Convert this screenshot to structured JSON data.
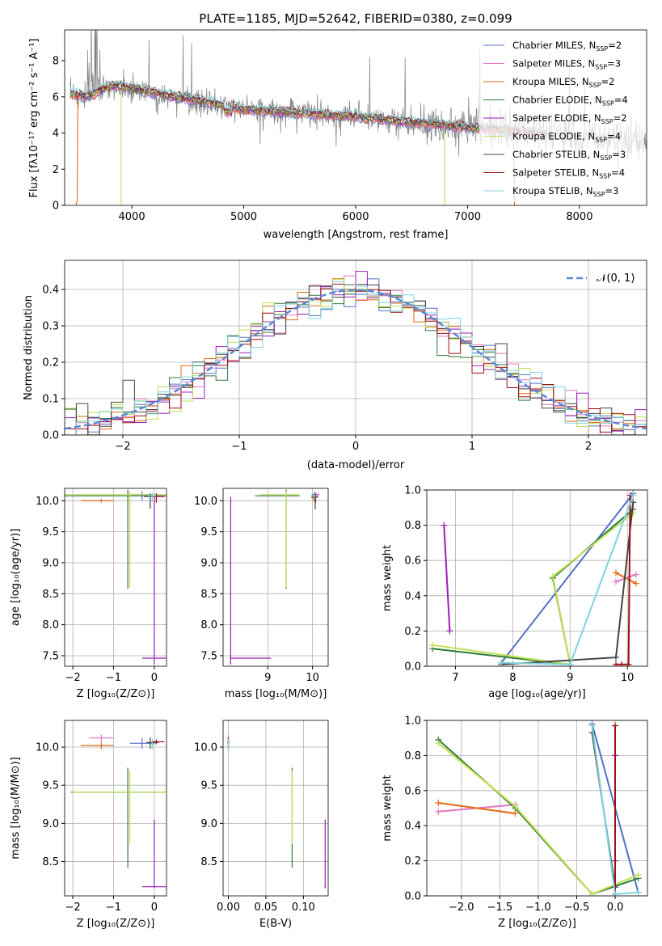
{
  "title": "PLATE=1185, MJD=52642, FIBERID=0380, z=0.099",
  "models": [
    {
      "name": "Chabrier MILES",
      "nssp": "2",
      "color": "#5470c6"
    },
    {
      "name": "Salpeter MILES",
      "nssp": "3",
      "color": "#e377c2"
    },
    {
      "name": "Kroupa MILES",
      "nssp": "2",
      "color": "#e66a14"
    },
    {
      "name": "Chabrier ELODIE",
      "nssp": "4",
      "color": "#2f7a3a"
    },
    {
      "name": "Salpeter ELODIE",
      "nssp": "2",
      "color": "#9a1fb5"
    },
    {
      "name": "Kroupa ELODIE",
      "nssp": "4",
      "color": "#c2e055"
    },
    {
      "name": "Chabrier STELIB",
      "nssp": "3",
      "color": "#444444"
    },
    {
      "name": "Salpeter STELIB",
      "nssp": "4",
      "color": "#a00d14"
    },
    {
      "name": "Kroupa STELIB",
      "nssp": "3",
      "color": "#7fd3dd"
    }
  ],
  "chart_data": [
    {
      "type": "line",
      "xlabel": "wavelength [Angstrom, rest frame]",
      "ylabel": "Flux [fλ10⁻¹⁷ erg cm⁻² s⁻¹ A⁻¹]",
      "xlim": [
        3400,
        8600
      ],
      "ylim": [
        0,
        9.7
      ],
      "xticks": [
        4000,
        5000,
        6000,
        7000,
        8000
      ],
      "yticks": [
        0,
        2,
        4,
        6,
        8
      ],
      "data_color": "#808080",
      "model_continuum": {
        "x": [
          3450,
          3600,
          3800,
          4000,
          4300,
          4600,
          5000,
          5500,
          6000,
          6500,
          7000,
          7500,
          7700
        ],
        "y": [
          6.2,
          6.0,
          6.6,
          6.5,
          6.1,
          5.8,
          5.3,
          5.1,
          4.9,
          4.6,
          4.3,
          4.1,
          3.9
        ]
      },
      "data_continuum": {
        "x": [
          3450,
          3600,
          3800,
          4000,
          4300,
          4600,
          5000,
          5500,
          6000,
          6500,
          7000,
          7500,
          8000,
          8500,
          8600
        ],
        "y": [
          6.2,
          6.0,
          6.5,
          6.4,
          6.0,
          5.7,
          5.3,
          5.1,
          4.9,
          4.6,
          4.3,
          4.1,
          3.8,
          3.6,
          3.5
        ]
      }
    },
    {
      "type": "bar",
      "xlabel": "(data-model)/error",
      "ylabel": "Normed distribution",
      "xlim": [
        -2.5,
        2.5
      ],
      "ylim": [
        0,
        0.48
      ],
      "xticks": [
        -2,
        -1,
        0,
        1,
        2
      ],
      "yticks": [
        0.0,
        0.1,
        0.2,
        0.3,
        0.4
      ],
      "bin_width": 0.1,
      "normal_pdf_label": "𝒩(0, 1)",
      "normal_pdf_color": "#5b8bd6"
    },
    {
      "type": "scatter",
      "xlabel": "Z [log₁₀(Z/Z⊙)]",
      "ylabel": "age  [log₁₀(age/yr)]",
      "xlim": [
        -2.2,
        0.3
      ],
      "ylim": [
        7.33,
        10.2
      ],
      "xticks": [
        -2,
        -1,
        0
      ],
      "yticks": [
        7.5,
        8.0,
        8.5,
        9.0,
        9.5,
        10.0
      ]
    },
    {
      "type": "scatter",
      "xlabel": "mass [log₁₀(M/M⊙)]",
      "ylabel": "",
      "xlim": [
        8.0,
        10.35
      ],
      "ylim": [
        7.33,
        10.2
      ],
      "xticks": [
        9,
        10
      ],
      "yticks": [
        7.5,
        8.0,
        8.5,
        9.0,
        9.5,
        10.0
      ]
    },
    {
      "type": "line",
      "xlabel": "age  [log₁₀(age/yr)]",
      "ylabel": "mass weight",
      "xlim": [
        6.5,
        10.35
      ],
      "ylim": [
        0,
        1.0
      ],
      "xticks": [
        7,
        8,
        9,
        10
      ],
      "yticks": [
        0.0,
        0.2,
        0.4,
        0.6,
        0.8,
        1.0
      ]
    },
    {
      "type": "scatter",
      "xlabel": "Z [log₁₀(Z/Z⊙)]",
      "ylabel": "mass [log₁₀(M/M⊙)]",
      "xlim": [
        -2.2,
        0.3
      ],
      "ylim": [
        8.05,
        10.35
      ],
      "xticks": [
        -2,
        -1,
        0
      ],
      "yticks": [
        8.5,
        9.0,
        9.5,
        10.0
      ]
    },
    {
      "type": "scatter",
      "xlabel": "E(B-V)",
      "ylabel": "",
      "xlim": [
        -0.007,
        0.133
      ],
      "ylim": [
        8.05,
        10.35
      ],
      "xticks": [
        0.0,
        0.05,
        0.1
      ],
      "xticklabels": [
        "0.00",
        "0.05",
        "0.10"
      ],
      "yticks": [
        8.5,
        9.0,
        9.5,
        10.0
      ]
    },
    {
      "type": "line",
      "xlabel": "Z [log₁₀(Z/Z⊙)]",
      "ylabel": "mass weight",
      "xlim": [
        -2.45,
        0.42
      ],
      "ylim": [
        0,
        1.0
      ],
      "xticks": [
        -2.0,
        -1.5,
        -1.0,
        -0.5,
        0.0
      ],
      "xticklabels": [
        "−2.0",
        "−1.5",
        "−1.0",
        "−0.5",
        "0.0"
      ],
      "yticks": [
        0.0,
        0.2,
        0.4,
        0.6,
        0.8,
        1.0
      ]
    }
  ],
  "fits": [
    {
      "Z": [
        -0.3,
        0.3
      ],
      "age": [
        10.1,
        7.8
      ],
      "w": [
        0.98,
        0.02
      ],
      "mass": 10.05,
      "mlo": 9.98,
      "mhi": 10.12,
      "ebv": 0.0
    },
    {
      "Z": [
        -1.3,
        -2.3
      ],
      "age": [
        10.15,
        9.8
      ],
      "w": [
        0.52,
        0.48
      ],
      "mass": 10.12,
      "mlo": 10.08,
      "mhi": 10.16,
      "ebv": 0.0
    },
    {
      "Z": [
        -1.3,
        -2.3
      ],
      "age": [
        10.15,
        9.8
      ],
      "w": [
        0.47,
        0.53
      ],
      "mass": 10.02,
      "mlo": 9.97,
      "mhi": 10.07,
      "ebv": 0.0
    },
    {
      "Z": [
        -2.3,
        -1.3,
        -0.3,
        0.3
      ],
      "age": [
        10.1,
        8.7,
        9.0,
        6.6
      ],
      "w": [
        0.89,
        0.5,
        0.01,
        0.1
      ],
      "mass": 9.41,
      "mlo": 8.42,
      "mhi": 9.73,
      "ebv": 0.085
    },
    {
      "Z": [
        0.0,
        0.0
      ],
      "age": [
        6.8,
        6.9
      ],
      "w": [
        0.8,
        0.2
      ],
      "mass": 8.17,
      "mlo": 8.15,
      "mhi": 9.05,
      "ebv": 0.129
    },
    {
      "Z": [
        -2.3,
        -1.3,
        -0.3,
        0.3
      ],
      "age": [
        10.1,
        8.7,
        9.0,
        6.6
      ],
      "w": [
        0.87,
        0.51,
        0.01,
        0.12
      ],
      "mass": 9.41,
      "mlo": 8.73,
      "mhi": 9.69,
      "ebv": 0.085
    },
    {
      "Z": [
        -0.3,
        0.0,
        0.0
      ],
      "age": [
        10.1,
        9.8,
        7.8
      ],
      "w": [
        0.93,
        0.05,
        0.01
      ],
      "mass": 10.06,
      "mlo": 9.98,
      "mhi": 10.13,
      "ebv": 0.0
    },
    {
      "Z": [
        0.0,
        0.0,
        0.0,
        0.0
      ],
      "age": [
        10.05,
        10.02,
        9.9,
        9.8
      ],
      "w": [
        0.97,
        0.01,
        0.01,
        0.01
      ],
      "mass": 10.07,
      "mlo": 10.04,
      "mhi": 10.1,
      "ebv": 0.0
    },
    {
      "Z": [
        -0.3,
        0.0,
        0.3
      ],
      "age": [
        10.1,
        9.0,
        7.8
      ],
      "w": [
        0.97,
        0.01,
        0.02
      ],
      "mass": 10.04,
      "mlo": 9.97,
      "mhi": 10.11,
      "ebv": 0.0
    }
  ]
}
